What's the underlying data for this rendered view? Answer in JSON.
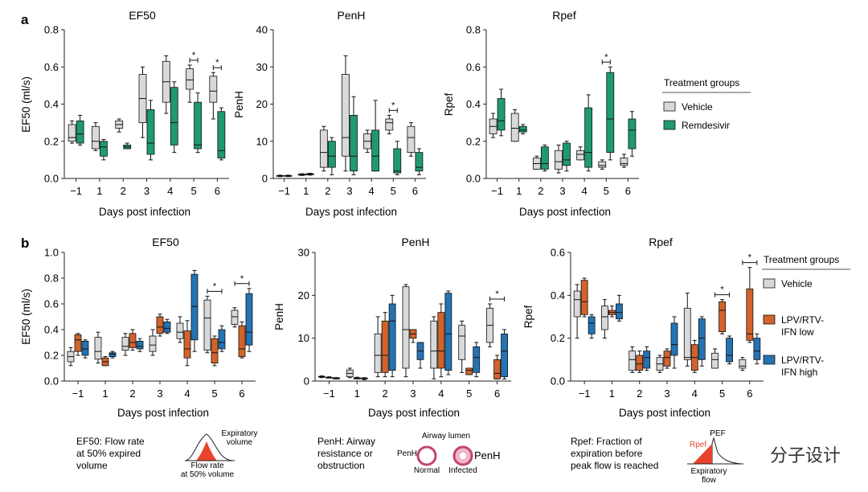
{
  "panels": [
    {
      "id": "a",
      "label": "a"
    },
    {
      "id": "b",
      "label": "b"
    }
  ],
  "colors": {
    "vehicle": "#d9d9d9",
    "remdesivir": "#1f9a6e",
    "lpv_low": "#d2632c",
    "lpv_high": "#2473b3",
    "red_fill": "#e8442c"
  },
  "legends": {
    "a": {
      "title": "Treatment groups",
      "items": [
        {
          "label": "Vehicle",
          "color": "#d9d9d9"
        },
        {
          "label": "Remdesivir",
          "color": "#1f9a6e"
        }
      ]
    },
    "b": {
      "title": "Treatment groups",
      "items": [
        {
          "label": "Vehicle",
          "color": "#d9d9d9"
        },
        {
          "label": "LPV/RTV-\nIFN low",
          "color": "#d2632c"
        },
        {
          "label": "LPV/RTV-\nIFN high",
          "color": "#2473b3"
        }
      ]
    }
  },
  "annotations": {
    "ef50": "EF50: Flow rate\nat 50% expired\nvolume",
    "ef50_icon_top": "Expiratory\nvolume",
    "ef50_icon_bottom": "Flow rate\nat 50% volume",
    "penh": "PenH: Airway\nresistance or\nobstruction",
    "penh_icon_top": "Airway lumen",
    "penh_icon_left": "PenH",
    "penh_icon_right": "PenH",
    "penh_icon_normal": "Normal",
    "penh_icon_infected": "Infected",
    "rpef": "Rpef: Fraction of\nexpiration before\npeak flow is reached",
    "rpef_icon_pef": "PEF",
    "rpef_icon_rpef": "Rpef",
    "rpef_icon_bottom": "Expiratory\nflow"
  },
  "watermark": "分子设计",
  "chart_data": [
    {
      "type": "box",
      "panel": "a",
      "title": "EF50",
      "ylabel": "EF50 (ml/s)",
      "xlabel": "Days post infection",
      "categories": [
        "−1",
        "1",
        "2",
        "3",
        "4",
        "5",
        "6"
      ],
      "ylim": [
        0,
        0.8
      ],
      "yticks": [
        "0.0",
        "0.2",
        "0.4",
        "0.6",
        "0.8"
      ],
      "series": [
        {
          "name": "Vehicle",
          "boxes": [
            [
              0.19,
              0.2,
              0.22,
              0.29,
              0.31
            ],
            [
              0.15,
              0.16,
              0.2,
              0.28,
              0.3
            ],
            [
              0.25,
              0.27,
              0.29,
              0.31,
              0.32
            ],
            [
              0.22,
              0.3,
              0.43,
              0.56,
              0.6
            ],
            [
              0.35,
              0.41,
              0.52,
              0.63,
              0.66
            ],
            [
              0.41,
              0.48,
              0.53,
              0.59,
              0.61
            ],
            [
              0.32,
              0.41,
              0.47,
              0.55,
              0.57
            ]
          ]
        },
        {
          "name": "Remdesivir",
          "boxes": [
            [
              0.18,
              0.19,
              0.24,
              0.31,
              0.34
            ],
            [
              0.1,
              0.12,
              0.17,
              0.2,
              0.21
            ],
            [
              0.16,
              0.16,
              0.17,
              0.18,
              0.19
            ],
            [
              0.1,
              0.13,
              0.19,
              0.37,
              0.42
            ],
            [
              0.14,
              0.18,
              0.3,
              0.49,
              0.52
            ],
            [
              0.14,
              0.16,
              0.18,
              0.41,
              0.46
            ],
            [
              0.1,
              0.11,
              0.15,
              0.36,
              0.38
            ]
          ]
        }
      ],
      "significance": [
        {
          "category": "5",
          "label": "*"
        },
        {
          "category": "6",
          "label": "*"
        }
      ]
    },
    {
      "type": "box",
      "panel": "a",
      "title": "PenH",
      "ylabel": "PenH",
      "xlabel": "Days post infection",
      "categories": [
        "−1",
        "1",
        "2",
        "3",
        "4",
        "5",
        "6"
      ],
      "ylim": [
        0,
        40
      ],
      "yticks": [
        "0",
        "10",
        "20",
        "30",
        "40"
      ],
      "series": [
        {
          "name": "Vehicle",
          "boxes": [
            [
              0.5,
              0.6,
              0.7,
              0.8,
              0.9
            ],
            [
              0.8,
              0.9,
              1.0,
              1.2,
              1.3
            ],
            [
              2,
              3,
              7,
              13,
              14
            ],
            [
              2,
              6,
              11,
              28,
              33
            ],
            [
              7,
              8,
              10,
              12,
              13
            ],
            [
              12,
              13,
              15,
              16,
              17
            ],
            [
              6,
              7,
              11,
              14,
              15
            ]
          ]
        },
        {
          "name": "Remdesivir",
          "boxes": [
            [
              0.5,
              0.6,
              0.7,
              0.8,
              0.9
            ],
            [
              0.9,
              1.0,
              1.1,
              1.3,
              1.4
            ],
            [
              1,
              3,
              6,
              10,
              11
            ],
            [
              1,
              2,
              6,
              17,
              22
            ],
            [
              2,
              2,
              6,
              13,
              21
            ],
            [
              1,
              1.5,
              2,
              8,
              10
            ],
            [
              1,
              2,
              3,
              7,
              8
            ]
          ]
        }
      ],
      "significance": [
        {
          "category": "5",
          "label": "*"
        }
      ]
    },
    {
      "type": "box",
      "panel": "a",
      "title": "Rpef",
      "ylabel": "Rpef",
      "xlabel": "Days post infection",
      "categories": [
        "−1",
        "1",
        "2",
        "3",
        "4",
        "5",
        "6"
      ],
      "ylim": [
        0,
        0.8
      ],
      "yticks": [
        "0.0",
        "0.2",
        "0.4",
        "0.6",
        "0.8"
      ],
      "series": [
        {
          "name": "Vehicle",
          "boxes": [
            [
              0.22,
              0.24,
              0.28,
              0.32,
              0.35
            ],
            [
              0.2,
              0.2,
              0.27,
              0.35,
              0.37
            ],
            [
              0.05,
              0.05,
              0.08,
              0.11,
              0.12
            ],
            [
              0.03,
              0.05,
              0.09,
              0.15,
              0.18
            ],
            [
              0.1,
              0.1,
              0.13,
              0.15,
              0.17
            ],
            [
              0.05,
              0.06,
              0.07,
              0.09,
              0.1
            ],
            [
              0.06,
              0.07,
              0.08,
              0.11,
              0.13
            ]
          ]
        },
        {
          "name": "Remdesivir",
          "boxes": [
            [
              0.23,
              0.26,
              0.31,
              0.43,
              0.48
            ],
            [
              0.24,
              0.25,
              0.26,
              0.28,
              0.29
            ],
            [
              0.04,
              0.05,
              0.08,
              0.17,
              0.18
            ],
            [
              0.04,
              0.07,
              0.1,
              0.19,
              0.2
            ],
            [
              0.04,
              0.06,
              0.14,
              0.38,
              0.45
            ],
            [
              0.1,
              0.14,
              0.32,
              0.57,
              0.6
            ],
            [
              0.12,
              0.16,
              0.26,
              0.32,
              0.36
            ]
          ]
        }
      ],
      "significance": [
        {
          "category": "5",
          "label": "*"
        }
      ]
    },
    {
      "type": "box",
      "panel": "b",
      "title": "EF50",
      "ylabel": "EF50 (ml/s)",
      "xlabel": "Days post infection",
      "categories": [
        "−1",
        "1",
        "2",
        "3",
        "4",
        "5",
        "6"
      ],
      "ylim": [
        0,
        1.0
      ],
      "yticks": [
        "0.0",
        "0.2",
        "0.4",
        "0.6",
        "0.8",
        "1.0"
      ],
      "series": [
        {
          "name": "Vehicle",
          "boxes": [
            [
              0.12,
              0.15,
              0.19,
              0.23,
              0.26
            ],
            [
              0.14,
              0.17,
              0.23,
              0.34,
              0.38
            ],
            [
              0.2,
              0.24,
              0.27,
              0.34,
              0.37
            ],
            [
              0.2,
              0.23,
              0.28,
              0.35,
              0.4
            ],
            [
              0.3,
              0.33,
              0.38,
              0.45,
              0.5
            ],
            [
              0.22,
              0.24,
              0.49,
              0.63,
              0.66
            ],
            [
              0.42,
              0.44,
              0.5,
              0.55,
              0.57
            ]
          ]
        },
        {
          "name": "LPV/RTV-IFN low",
          "boxes": [
            [
              0.2,
              0.23,
              0.32,
              0.36,
              0.37
            ],
            [
              0.12,
              0.12,
              0.15,
              0.18,
              0.19
            ],
            [
              0.24,
              0.26,
              0.3,
              0.37,
              0.4
            ],
            [
              0.35,
              0.37,
              0.42,
              0.5,
              0.52
            ],
            [
              0.12,
              0.18,
              0.25,
              0.39,
              0.47
            ],
            [
              0.12,
              0.14,
              0.22,
              0.33,
              0.35
            ],
            [
              0.18,
              0.19,
              0.25,
              0.43,
              0.46
            ]
          ]
        },
        {
          "name": "LPV/RTV-IFN high",
          "boxes": [
            [
              0.18,
              0.2,
              0.25,
              0.31,
              0.32
            ],
            [
              0.18,
              0.19,
              0.21,
              0.22,
              0.23
            ],
            [
              0.23,
              0.25,
              0.27,
              0.31,
              0.33
            ],
            [
              0.37,
              0.38,
              0.41,
              0.46,
              0.48
            ],
            [
              0.23,
              0.32,
              0.58,
              0.83,
              0.86
            ],
            [
              0.23,
              0.25,
              0.3,
              0.4,
              0.43
            ],
            [
              0.23,
              0.28,
              0.38,
              0.68,
              0.72
            ]
          ]
        }
      ],
      "significance": [
        {
          "category": "5",
          "label": "*"
        },
        {
          "category": "6",
          "label": "*"
        }
      ]
    },
    {
      "type": "box",
      "panel": "b",
      "title": "PenH",
      "ylabel": "PenH",
      "xlabel": "Days post infection",
      "categories": [
        "−1",
        "1",
        "2",
        "3",
        "4",
        "5",
        "6"
      ],
      "ylim": [
        0,
        30
      ],
      "yticks": [
        "0",
        "10",
        "20",
        "30"
      ],
      "series": [
        {
          "name": "Vehicle",
          "boxes": [
            [
              0.8,
              0.9,
              1.0,
              1.1,
              1.2
            ],
            [
              0.8,
              1.0,
              1.8,
              2.6,
              3.0
            ],
            [
              1,
              2,
              6,
              11,
              15
            ],
            [
              1,
              3,
              12,
              22,
              22.5
            ],
            [
              0.5,
              3,
              7,
              14,
              15
            ],
            [
              2,
              5,
              10.5,
              13,
              14
            ],
            [
              8,
              9,
              13,
              17,
              18
            ]
          ]
        },
        {
          "name": "LPV/RTV-IFN low",
          "boxes": [
            [
              0.7,
              0.7,
              0.8,
              0.9,
              1.0
            ],
            [
              0.5,
              0.5,
              0.7,
              0.8,
              0.9
            ],
            [
              1,
              2,
              6,
              14,
              16
            ],
            [
              9,
              10,
              11,
              12,
              12
            ],
            [
              1,
              3,
              7,
              16,
              18
            ],
            [
              1.5,
              1.5,
              2.5,
              3,
              3
            ],
            [
              0.5,
              0.5,
              1.8,
              5,
              6
            ]
          ]
        },
        {
          "name": "LPV/RTV-IFN high",
          "boxes": [
            [
              0.5,
              0.5,
              0.6,
              0.8,
              0.8
            ],
            [
              0.3,
              0.5,
              0.6,
              0.7,
              0.8
            ],
            [
              1,
              2.5,
              14,
              18,
              20
            ],
            [
              3,
              5,
              7,
              9,
              9
            ],
            [
              1.5,
              2.5,
              11,
              20.5,
              21
            ],
            [
              1,
              2,
              5.5,
              8,
              9
            ],
            [
              0.5,
              1,
              7,
              11,
              12
            ]
          ]
        }
      ],
      "significance": [
        {
          "category": "6",
          "label": "*"
        }
      ]
    },
    {
      "type": "box",
      "panel": "b",
      "title": "Rpef",
      "ylabel": "Rpef",
      "xlabel": "Days post infection",
      "categories": [
        "−1",
        "1",
        "2",
        "3",
        "4",
        "5",
        "6"
      ],
      "ylim": [
        0,
        0.6
      ],
      "yticks": [
        "0.0",
        "0.2",
        "0.4",
        "0.6"
      ],
      "series": [
        {
          "name": "Vehicle",
          "boxes": [
            [
              0.2,
              0.3,
              0.38,
              0.42,
              0.45
            ],
            [
              0.2,
              0.24,
              0.3,
              0.35,
              0.38
            ],
            [
              0.04,
              0.05,
              0.1,
              0.14,
              0.16
            ],
            [
              0.04,
              0.05,
              0.08,
              0.11,
              0.12
            ],
            [
              0.07,
              0.1,
              0.11,
              0.34,
              0.41
            ],
            [
              0.06,
              0.06,
              0.1,
              0.13,
              0.15
            ],
            [
              0.05,
              0.06,
              0.07,
              0.1,
              0.11
            ]
          ]
        },
        {
          "name": "LPV/RTV-IFN low",
          "boxes": [
            [
              0.3,
              0.31,
              0.37,
              0.47,
              0.48
            ],
            [
              0.3,
              0.31,
              0.32,
              0.33,
              0.35
            ],
            [
              0.04,
              0.05,
              0.08,
              0.12,
              0.14
            ],
            [
              0.06,
              0.07,
              0.11,
              0.14,
              0.15
            ],
            [
              0.04,
              0.05,
              0.11,
              0.17,
              0.19
            ],
            [
              0.22,
              0.23,
              0.33,
              0.37,
              0.38
            ],
            [
              0.18,
              0.19,
              0.22,
              0.43,
              0.53
            ]
          ]
        },
        {
          "name": "LPV/RTV-IFN high",
          "boxes": [
            [
              0.2,
              0.22,
              0.27,
              0.3,
              0.31
            ],
            [
              0.28,
              0.29,
              0.32,
              0.36,
              0.4
            ],
            [
              0.05,
              0.06,
              0.11,
              0.14,
              0.16
            ],
            [
              0.06,
              0.12,
              0.17,
              0.27,
              0.3
            ],
            [
              0.07,
              0.1,
              0.2,
              0.29,
              0.3
            ],
            [
              0.08,
              0.09,
              0.12,
              0.2,
              0.21
            ],
            [
              0.08,
              0.1,
              0.14,
              0.2,
              0.22
            ]
          ]
        }
      ],
      "significance": [
        {
          "category": "5",
          "label": "*"
        },
        {
          "category": "6",
          "label": "*"
        }
      ]
    }
  ]
}
